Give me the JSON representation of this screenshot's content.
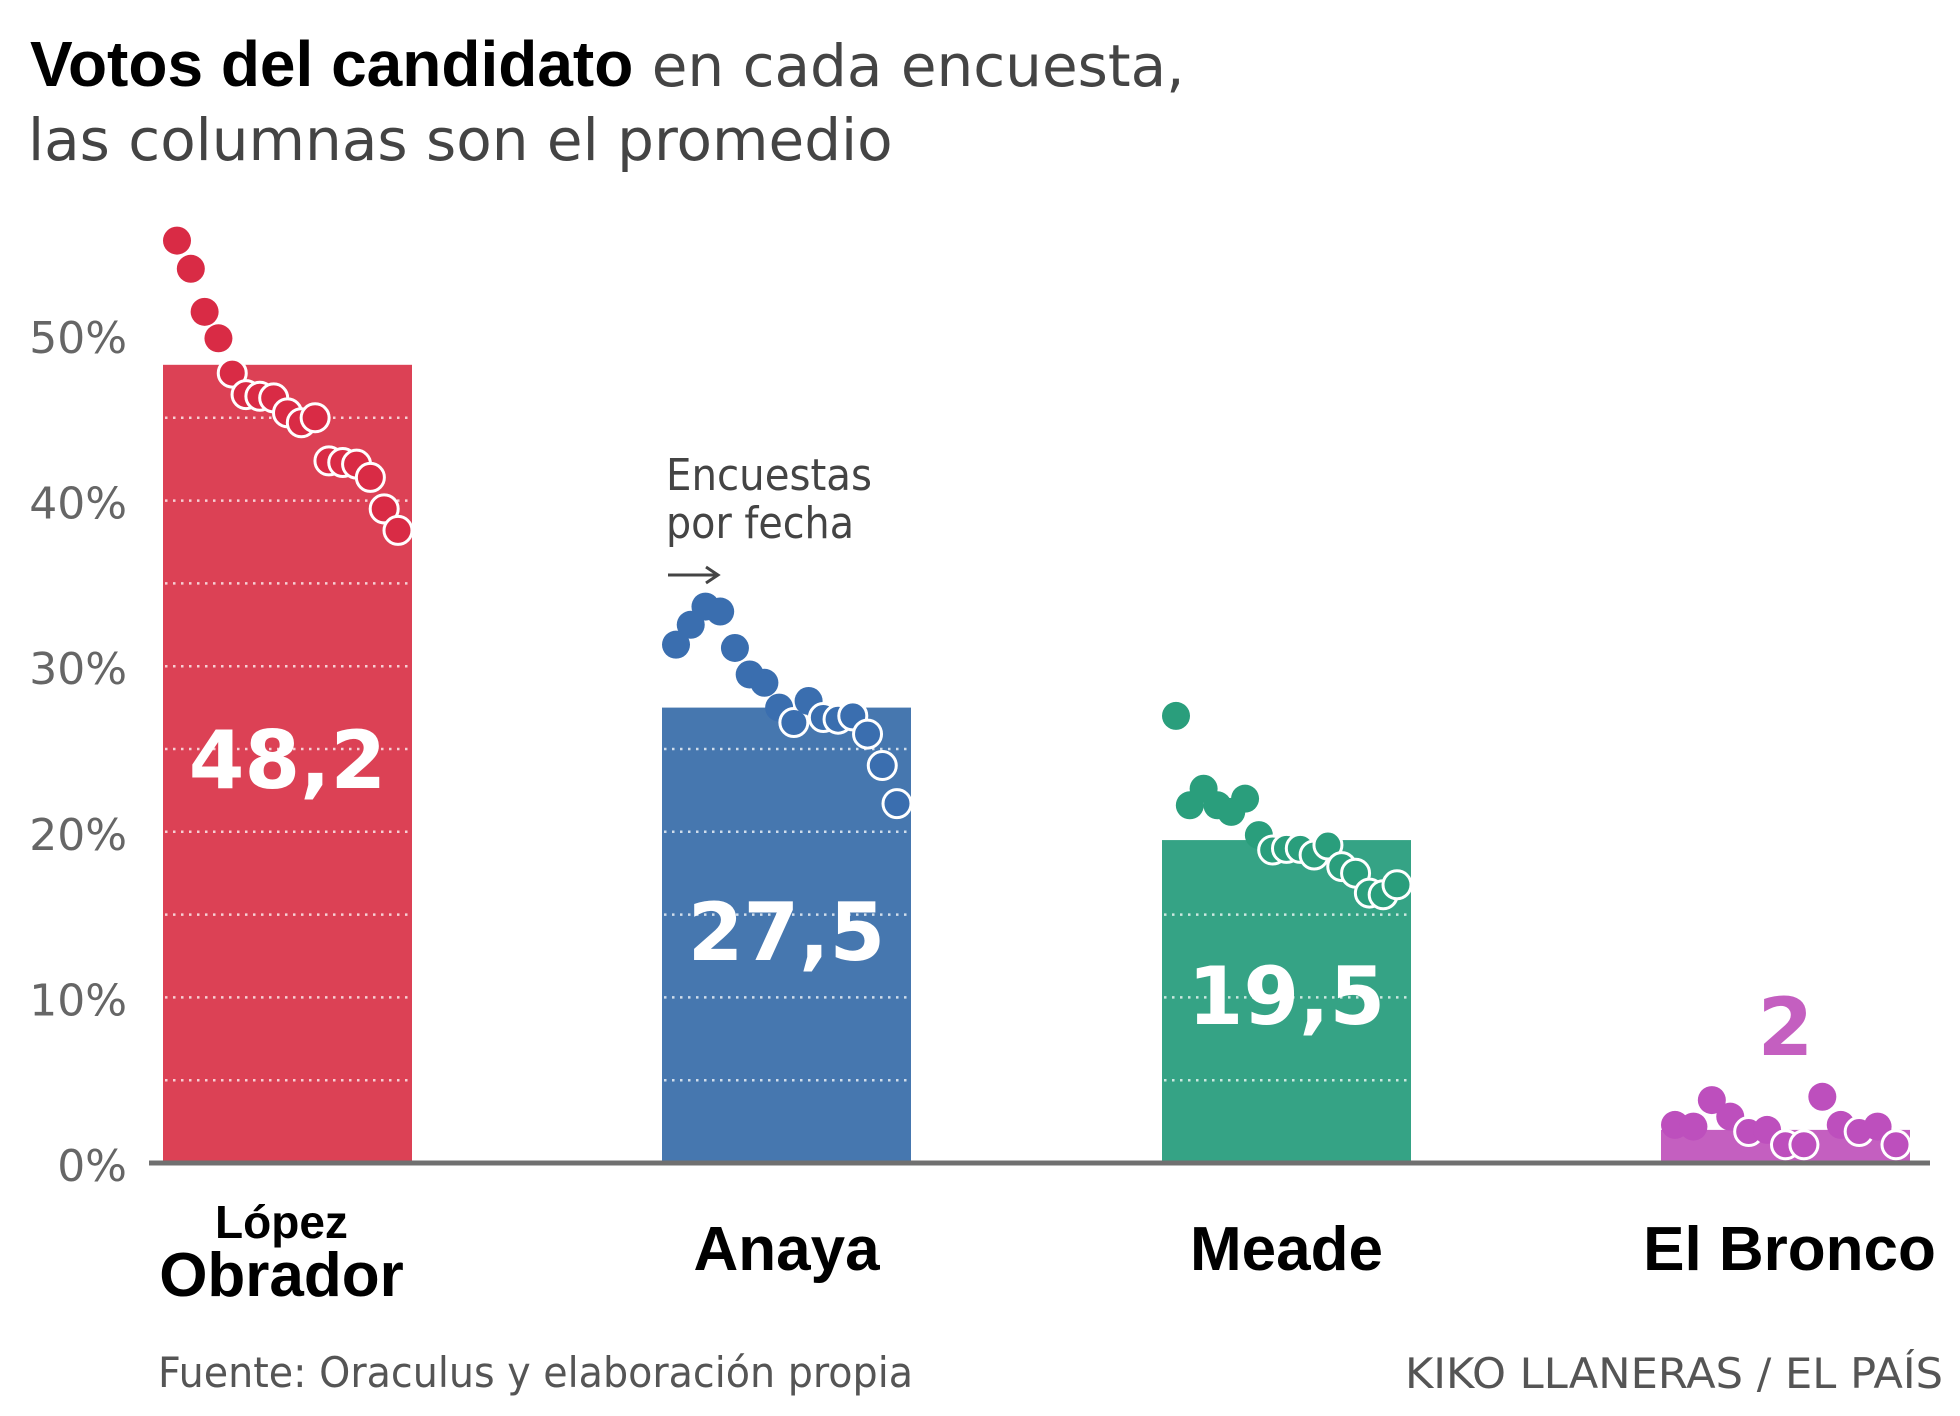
{
  "title": {
    "bold": "Votos del candidato",
    "light_line1": " en cada encuesta,",
    "light_line2": "las columnas son el promedio"
  },
  "annotation": {
    "line1": "Encuestas",
    "line2": "por fecha",
    "arrow": "⟶"
  },
  "footer": {
    "source": "Fuente: Oraculus y elaboración propia",
    "credit": "KIKO LLANERAS / EL PAÍS"
  },
  "chart_data": {
    "type": "bar",
    "title": "Votos del candidato en cada encuesta, las columnas son el promedio",
    "xlabel": "",
    "ylabel": "",
    "ylim": [
      0,
      57
    ],
    "yticks": [
      0,
      10,
      20,
      30,
      40,
      50
    ],
    "ytick_labels": [
      "0%",
      "10%",
      "20%",
      "30%",
      "40%",
      "50%"
    ],
    "gridlines_every": 5,
    "grid": true,
    "categories": [
      "López Obrador",
      "Anaya",
      "Meade",
      "El Bronco"
    ],
    "category_label_lines": [
      [
        "López",
        "Obrador"
      ],
      [
        "Anaya"
      ],
      [
        "Meade"
      ],
      [
        "El Bronco"
      ]
    ],
    "values": [
      48.2,
      27.5,
      19.5,
      2
    ],
    "value_labels": [
      "48,2",
      "27,5",
      "19,5",
      "2"
    ],
    "colors": [
      "#dc4155",
      "#4677af",
      "#35a385",
      "#c45fc0"
    ],
    "dot_colors": [
      "#d92b45",
      "#3a6eaf",
      "#2a9e7c",
      "#bd4fbd"
    ],
    "polls": [
      [
        55.7,
        54.0,
        51.4,
        49.8,
        47.7,
        46.4,
        46.3,
        46.2,
        45.3,
        44.7,
        45.0,
        42.4,
        42.3,
        42.2,
        41.4,
        39.5,
        38.2
      ],
      [
        31.3,
        32.5,
        33.6,
        33.3,
        31.1,
        29.5,
        29.0,
        27.5,
        26.6,
        27.9,
        26.9,
        26.8,
        27.0,
        25.9,
        24.0,
        21.7
      ],
      [
        27.0,
        21.6,
        22.6,
        21.6,
        21.2,
        22.0,
        19.8,
        18.9,
        19.0,
        19.0,
        18.6,
        19.2,
        17.9,
        17.5,
        16.3,
        16.2,
        16.8
      ],
      [
        2.3,
        2.2,
        3.8,
        2.8,
        1.9,
        2.0,
        1.1,
        1.1,
        4.0,
        2.3,
        1.9,
        2.2,
        1.1
      ]
    ],
    "poll_order_hint": "Encuestas por fecha (left to right)"
  }
}
